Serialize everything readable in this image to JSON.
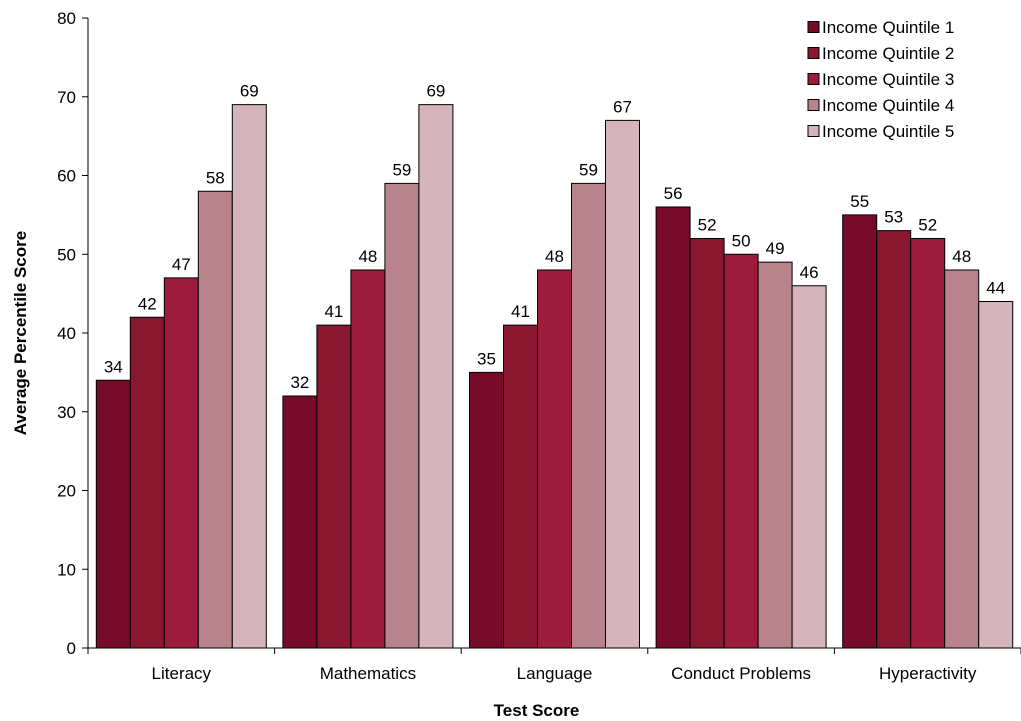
{
  "chart_data": {
    "type": "bar",
    "title": "",
    "xlabel": "Test Score",
    "ylabel": "Average Percentile Score",
    "ylim": [
      0,
      80
    ],
    "yticks": [
      0,
      10,
      20,
      30,
      40,
      50,
      60,
      70,
      80
    ],
    "grid": false,
    "legend_position": "top-right",
    "categories": [
      "Literacy",
      "Mathematics",
      "Language",
      "Conduct Problems",
      "Hyperactivity"
    ],
    "series": [
      {
        "name": "Income Quintile 1",
        "color": "#760C2A",
        "values": [
          34,
          32,
          35,
          56,
          55
        ]
      },
      {
        "name": "Income Quintile 2",
        "color": "#8A1730",
        "values": [
          42,
          41,
          41,
          52,
          53
        ]
      },
      {
        "name": "Income Quintile 3",
        "color": "#9E1C3B",
        "values": [
          47,
          48,
          48,
          50,
          52
        ]
      },
      {
        "name": "Income Quintile 4",
        "color": "#B9838C",
        "values": [
          58,
          59,
          59,
          49,
          48
        ]
      },
      {
        "name": "Income Quintile 5",
        "color": "#D5B5BB",
        "values": [
          69,
          69,
          67,
          46,
          44
        ]
      }
    ]
  }
}
